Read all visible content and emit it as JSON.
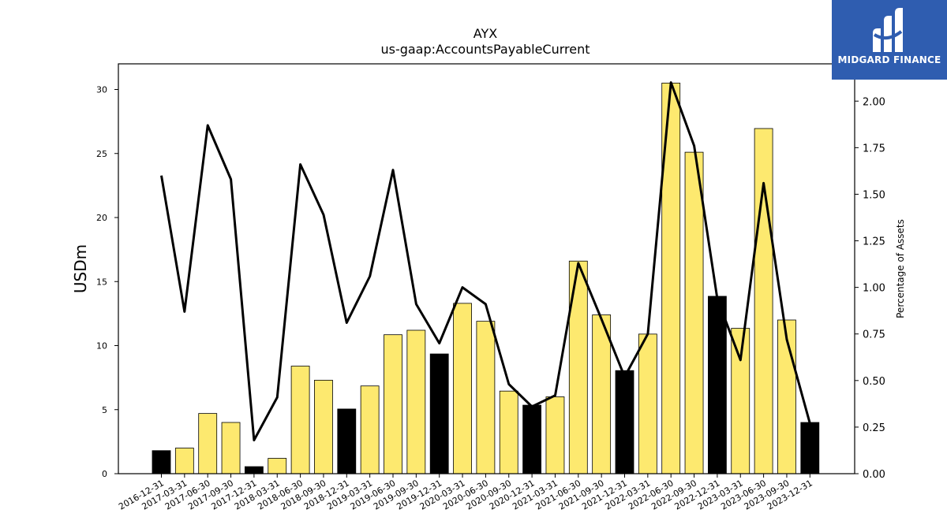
{
  "logo": {
    "text": "MIDGARD FINANCE"
  },
  "chart_data": {
    "type": "bar",
    "title": "AYX",
    "subtitle": "us-gaap:AccountsPayableCurrent",
    "ylabel": "USDm",
    "y2label": "Percentage of Assets",
    "ylim": [
      0,
      32
    ],
    "y2lim": [
      0,
      2.2
    ],
    "yticks": [
      0,
      5,
      10,
      15,
      20,
      25,
      30
    ],
    "y2ticks": [
      "0.00",
      "0.25",
      "0.50",
      "0.75",
      "1.00",
      "1.25",
      "1.50",
      "1.75",
      "2.00"
    ],
    "categories": [
      "2016-12-31",
      "2017-03-31",
      "2017-06-30",
      "2017-09-30",
      "2017-12-31",
      "2018-03-31",
      "2018-06-30",
      "2018-09-30",
      "2018-12-31",
      "2019-03-31",
      "2019-06-30",
      "2019-09-30",
      "2019-12-31",
      "2020-03-31",
      "2020-06-30",
      "2020-09-30",
      "2020-12-31",
      "2021-03-31",
      "2021-06-30",
      "2021-09-30",
      "2021-12-31",
      "2022-03-31",
      "2022-06-30",
      "2022-09-30",
      "2022-12-31",
      "2023-03-31",
      "2023-06-30",
      "2023-09-30",
      "2023-12-31"
    ],
    "values": [
      1.8,
      2.0,
      4.7,
      4.0,
      0.55,
      1.2,
      8.4,
      7.3,
      5.05,
      6.85,
      10.85,
      11.2,
      9.35,
      13.3,
      11.9,
      6.45,
      5.35,
      6.0,
      16.6,
      12.4,
      8.05,
      10.9,
      30.5,
      25.1,
      13.85,
      11.35,
      26.95,
      12.0,
      4.0
    ],
    "q4_flags": [
      true,
      false,
      false,
      false,
      true,
      false,
      false,
      false,
      true,
      false,
      false,
      false,
      true,
      false,
      false,
      false,
      true,
      false,
      false,
      false,
      true,
      false,
      false,
      false,
      true,
      false,
      false,
      false,
      true
    ],
    "pct_of_assets": [
      1.6,
      0.87,
      1.87,
      1.58,
      0.18,
      0.41,
      1.66,
      1.39,
      0.81,
      1.06,
      1.63,
      0.91,
      0.7,
      1.0,
      0.91,
      0.48,
      0.36,
      0.42,
      1.13,
      0.83,
      0.52,
      0.75,
      2.1,
      1.76,
      0.94,
      0.61,
      1.56,
      0.72,
      0.27
    ],
    "colors": {
      "bar": "#fde96f",
      "bar_q4": "#000000",
      "line": "#000000",
      "bar_edge": "#000000"
    },
    "grid": false,
    "legend": "none"
  }
}
